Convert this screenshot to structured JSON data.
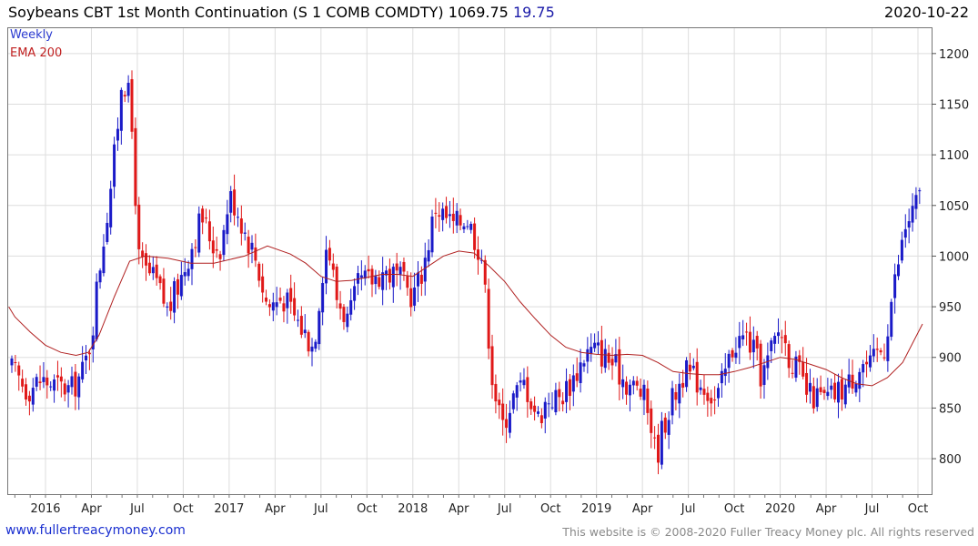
{
  "header": {
    "title": "Soybeans CBT 1st Month Continuation (S 1 COMB COMDTY) 1069.75",
    "change": "19.75",
    "date": "2020-10-22"
  },
  "legend": {
    "weekly": "Weekly",
    "ema": "EMA 200"
  },
  "footer": {
    "left": "www.fullertreacymoney.com",
    "right": "This website is © 2008-2020 Fuller Treacy Money plc. All rights reserved"
  },
  "colors": {
    "up": "#1a1ac8",
    "down": "#e01818",
    "ema": "#b02020",
    "grid": "#dddddd"
  },
  "chart_data": {
    "type": "candlestick",
    "title": "Soybeans CBT 1st Month Continuation (S 1 COMB COMDTY)",
    "period": "Weekly",
    "overlay": "EMA 200",
    "ylim": [
      765,
      1225
    ],
    "xlim_months": [
      0,
      60
    ],
    "yticks": [
      800,
      850,
      900,
      950,
      1000,
      1050,
      1100,
      1150,
      1200
    ],
    "xticks": [
      {
        "label": "2016",
        "m": 0
      },
      {
        "label": "Apr",
        "m": 3
      },
      {
        "label": "Jul",
        "m": 6
      },
      {
        "label": "Oct",
        "m": 9
      },
      {
        "label": "2017",
        "m": 12
      },
      {
        "label": "Apr",
        "m": 15
      },
      {
        "label": "Jul",
        "m": 18
      },
      {
        "label": "Oct",
        "m": 21
      },
      {
        "label": "2018",
        "m": 24
      },
      {
        "label": "Apr",
        "m": 27
      },
      {
        "label": "Jul",
        "m": 30
      },
      {
        "label": "Oct",
        "m": 33
      },
      {
        "label": "2019",
        "m": 36
      },
      {
        "label": "Apr",
        "m": 39
      },
      {
        "label": "Jul",
        "m": 42
      },
      {
        "label": "Oct",
        "m": 45
      },
      {
        "label": "2020",
        "m": 48
      },
      {
        "label": "Apr",
        "m": 51
      },
      {
        "label": "Jul",
        "m": 54
      },
      {
        "label": "Oct",
        "m": 57
      }
    ],
    "price_path": [
      [
        -2.2,
        888
      ],
      [
        -1.2,
        868
      ],
      [
        -0.3,
        878
      ],
      [
        0.7,
        872
      ],
      [
        1.7,
        868
      ],
      [
        2.5,
        888
      ],
      [
        3.0,
        920
      ],
      [
        3.4,
        975
      ],
      [
        4.0,
        1040
      ],
      [
        4.6,
        1110
      ],
      [
        5.0,
        1180
      ],
      [
        5.4,
        1160
      ],
      [
        5.8,
        1100
      ],
      [
        6.0,
        1000
      ],
      [
        6.5,
        985
      ],
      [
        7.2,
        975
      ],
      [
        8.0,
        945
      ],
      [
        9.0,
        985
      ],
      [
        10.2,
        1040
      ],
      [
        11.0,
        1010
      ],
      [
        11.5,
        1010
      ],
      [
        12.0,
        1060
      ],
      [
        12.5,
        1048
      ],
      [
        13.0,
        1025
      ],
      [
        13.7,
        1000
      ],
      [
        14.5,
        950
      ],
      [
        15.5,
        960
      ],
      [
        16.5,
        935
      ],
      [
        17.5,
        910
      ],
      [
        18.3,
        1010
      ],
      [
        18.6,
        1000
      ],
      [
        19.0,
        960
      ],
      [
        19.8,
        935
      ],
      [
        20.5,
        975
      ],
      [
        21.2,
        975
      ],
      [
        22.0,
        985
      ],
      [
        23.0,
        980
      ],
      [
        24.0,
        960
      ],
      [
        24.7,
        990
      ],
      [
        25.5,
        1050
      ],
      [
        26.0,
        1040
      ],
      [
        26.7,
        1030
      ],
      [
        27.5,
        1040
      ],
      [
        28.0,
        1020
      ],
      [
        28.5,
        1000
      ],
      [
        29.2,
        880
      ],
      [
        29.8,
        830
      ],
      [
        30.5,
        860
      ],
      [
        31.3,
        875
      ],
      [
        32.2,
        840
      ],
      [
        32.8,
        860
      ],
      [
        33.6,
        860
      ],
      [
        34.5,
        880
      ],
      [
        35.3,
        905
      ],
      [
        36.0,
        908
      ],
      [
        37.0,
        895
      ],
      [
        38.0,
        875
      ],
      [
        39.0,
        865
      ],
      [
        39.5,
        840
      ],
      [
        39.9,
        800
      ],
      [
        40.3,
        830
      ],
      [
        41.0,
        860
      ],
      [
        41.7,
        885
      ],
      [
        42.4,
        880
      ],
      [
        43.2,
        870
      ],
      [
        43.8,
        855
      ],
      [
        44.3,
        880
      ],
      [
        45.0,
        915
      ],
      [
        45.8,
        920
      ],
      [
        46.3,
        905
      ],
      [
        46.8,
        880
      ],
      [
        47.5,
        910
      ],
      [
        48.0,
        930
      ],
      [
        48.5,
        905
      ],
      [
        49.2,
        885
      ],
      [
        49.8,
        862
      ],
      [
        50.5,
        860
      ],
      [
        51.0,
        858
      ],
      [
        51.7,
        865
      ],
      [
        52.5,
        875
      ],
      [
        53.3,
        895
      ],
      [
        53.9,
        890
      ],
      [
        54.4,
        905
      ],
      [
        54.8,
        910
      ],
      [
        55.3,
        960
      ],
      [
        55.8,
        1000
      ],
      [
        56.2,
        1030
      ],
      [
        56.7,
        1045
      ],
      [
        57.3,
        1065
      ]
    ],
    "ema_path": [
      [
        -2.4,
        950
      ],
      [
        -2.0,
        940
      ],
      [
        -1.0,
        925
      ],
      [
        0.0,
        912
      ],
      [
        1.0,
        905
      ],
      [
        2.0,
        902
      ],
      [
        2.8,
        905
      ],
      [
        3.5,
        922
      ],
      [
        4.5,
        960
      ],
      [
        5.5,
        995
      ],
      [
        6.5,
        1000
      ],
      [
        8.0,
        998
      ],
      [
        9.5,
        993
      ],
      [
        11.0,
        993
      ],
      [
        13.0,
        1000
      ],
      [
        14.5,
        1010
      ],
      [
        16.0,
        1002
      ],
      [
        17.0,
        993
      ],
      [
        18.0,
        980
      ],
      [
        19.0,
        975
      ],
      [
        20.0,
        976
      ],
      [
        21.0,
        979
      ],
      [
        22.0,
        982
      ],
      [
        23.0,
        982
      ],
      [
        24.0,
        980
      ],
      [
        25.0,
        990
      ],
      [
        26.0,
        1000
      ],
      [
        27.0,
        1005
      ],
      [
        28.0,
        1003
      ],
      [
        29.0,
        990
      ],
      [
        30.0,
        975
      ],
      [
        31.0,
        955
      ],
      [
        32.0,
        938
      ],
      [
        33.0,
        922
      ],
      [
        34.0,
        910
      ],
      [
        35.0,
        905
      ],
      [
        36.0,
        903
      ],
      [
        37.0,
        902
      ],
      [
        38.0,
        903
      ],
      [
        39.0,
        902
      ],
      [
        40.0,
        895
      ],
      [
        41.0,
        886
      ],
      [
        42.0,
        884
      ],
      [
        43.0,
        883
      ],
      [
        44.0,
        883
      ],
      [
        45.0,
        886
      ],
      [
        46.0,
        890
      ],
      [
        47.0,
        895
      ],
      [
        48.0,
        900
      ],
      [
        49.0,
        898
      ],
      [
        50.0,
        893
      ],
      [
        51.0,
        888
      ],
      [
        52.0,
        880
      ],
      [
        53.0,
        874
      ],
      [
        54.0,
        872
      ],
      [
        55.0,
        880
      ],
      [
        56.0,
        895
      ],
      [
        57.3,
        933
      ]
    ]
  }
}
